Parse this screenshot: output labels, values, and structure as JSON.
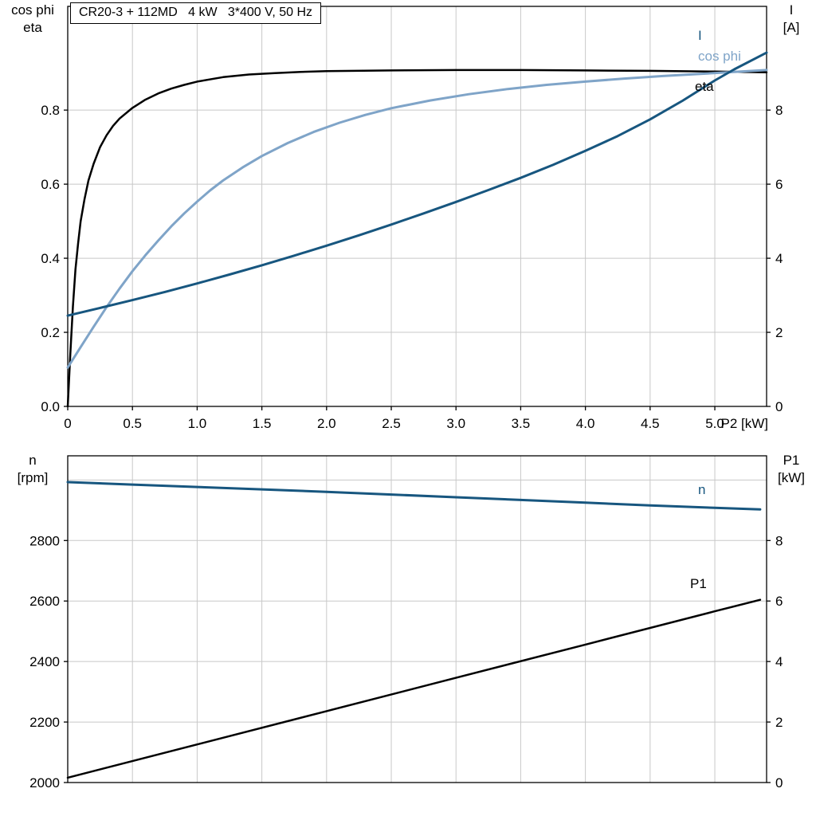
{
  "page": {
    "background": "#ffffff"
  },
  "title_box": {
    "text": "CR20-3 + 112MD   4 kW   3*400 V, 50 Hz"
  },
  "colors": {
    "black_curve": "#000000",
    "light_blue_curve": "#7fa4c8",
    "dark_blue_curve": "#17567f",
    "grid": "#c8c8c8",
    "frame": "#000000"
  },
  "chart_data": [
    {
      "id": "top",
      "type": "line",
      "title": "CR20-3 + 112MD   4 kW   3*400 V, 50 Hz",
      "x": {
        "min": 0,
        "max": 5.4,
        "label": "P2 [kW]",
        "ticks": [
          {
            "v": 0,
            "l": "0"
          },
          {
            "v": 0.5,
            "l": "0.5"
          },
          {
            "v": 1,
            "l": "1.0"
          },
          {
            "v": 1.5,
            "l": "1.5"
          },
          {
            "v": 2,
            "l": "2.0"
          },
          {
            "v": 2.5,
            "l": "2.5"
          },
          {
            "v": 3,
            "l": "3.0"
          },
          {
            "v": 3.5,
            "l": "3.5"
          },
          {
            "v": 4,
            "l": "4.0"
          },
          {
            "v": 4.5,
            "l": "4.5"
          },
          {
            "v": 5,
            "l": "5.0"
          }
        ]
      },
      "y_left": {
        "min": 0,
        "max": 1.08,
        "label1": "cos phi",
        "label2": "eta",
        "ticks": [
          {
            "v": 0,
            "l": "0.0"
          },
          {
            "v": 0.2,
            "l": "0.2"
          },
          {
            "v": 0.4,
            "l": "0.4"
          },
          {
            "v": 0.6,
            "l": "0.6"
          },
          {
            "v": 0.8,
            "l": "0.8"
          }
        ]
      },
      "y_right": {
        "min": 0,
        "max": 10.8,
        "label1": "I",
        "label2": "[A]",
        "ticks": [
          {
            "v": 0,
            "l": "0"
          },
          {
            "v": 2,
            "l": "2"
          },
          {
            "v": 4,
            "l": "4"
          },
          {
            "v": 6,
            "l": "6"
          },
          {
            "v": 8,
            "l": "8"
          }
        ]
      },
      "series": [
        {
          "name": "eta",
          "axis": "left",
          "color": "#000000",
          "points": [
            [
              0,
              0
            ],
            [
              0.02,
              0.14
            ],
            [
              0.04,
              0.27
            ],
            [
              0.06,
              0.37
            ],
            [
              0.08,
              0.44
            ],
            [
              0.1,
              0.5
            ],
            [
              0.13,
              0.56
            ],
            [
              0.16,
              0.61
            ],
            [
              0.2,
              0.655
            ],
            [
              0.25,
              0.7
            ],
            [
              0.3,
              0.732
            ],
            [
              0.35,
              0.757
            ],
            [
              0.4,
              0.777
            ],
            [
              0.5,
              0.806
            ],
            [
              0.6,
              0.828
            ],
            [
              0.7,
              0.845
            ],
            [
              0.8,
              0.858
            ],
            [
              0.9,
              0.868
            ],
            [
              1.0,
              0.877
            ],
            [
              1.2,
              0.889
            ],
            [
              1.4,
              0.896
            ],
            [
              1.6,
              0.9
            ],
            [
              1.8,
              0.903
            ],
            [
              2.0,
              0.905
            ],
            [
              2.5,
              0.907
            ],
            [
              3.0,
              0.908
            ],
            [
              3.5,
              0.908
            ],
            [
              4.0,
              0.907
            ],
            [
              4.5,
              0.906
            ],
            [
              5.0,
              0.904
            ],
            [
              5.4,
              0.902
            ]
          ]
        },
        {
          "name": "cos phi",
          "axis": "left",
          "color": "#7fa4c8",
          "points": [
            [
              0,
              0.105
            ],
            [
              0.1,
              0.16
            ],
            [
              0.2,
              0.215
            ],
            [
              0.3,
              0.268
            ],
            [
              0.4,
              0.318
            ],
            [
              0.5,
              0.365
            ],
            [
              0.6,
              0.408
            ],
            [
              0.7,
              0.448
            ],
            [
              0.8,
              0.486
            ],
            [
              0.9,
              0.521
            ],
            [
              1.0,
              0.553
            ],
            [
              1.1,
              0.583
            ],
            [
              1.2,
              0.61
            ],
            [
              1.35,
              0.645
            ],
            [
              1.5,
              0.676
            ],
            [
              1.7,
              0.711
            ],
            [
              1.9,
              0.741
            ],
            [
              2.1,
              0.766
            ],
            [
              2.3,
              0.787
            ],
            [
              2.5,
              0.805
            ],
            [
              2.8,
              0.826
            ],
            [
              3.1,
              0.843
            ],
            [
              3.4,
              0.857
            ],
            [
              3.7,
              0.868
            ],
            [
              4.0,
              0.877
            ],
            [
              4.3,
              0.885
            ],
            [
              4.6,
              0.892
            ],
            [
              4.9,
              0.898
            ],
            [
              5.15,
              0.903
            ],
            [
              5.4,
              0.908
            ]
          ]
        },
        {
          "name": "I",
          "axis": "right",
          "color": "#17567f",
          "points": [
            [
              0,
              2.45
            ],
            [
              0.25,
              2.66
            ],
            [
              0.5,
              2.87
            ],
            [
              0.75,
              3.09
            ],
            [
              1.0,
              3.32
            ],
            [
              1.25,
              3.56
            ],
            [
              1.5,
              3.81
            ],
            [
              1.75,
              4.07
            ],
            [
              2.0,
              4.34
            ],
            [
              2.25,
              4.62
            ],
            [
              2.5,
              4.91
            ],
            [
              2.75,
              5.21
            ],
            [
              3.0,
              5.52
            ],
            [
              3.25,
              5.84
            ],
            [
              3.5,
              6.17
            ],
            [
              3.75,
              6.52
            ],
            [
              4.0,
              6.9
            ],
            [
              4.25,
              7.3
            ],
            [
              4.5,
              7.75
            ],
            [
              4.75,
              8.25
            ],
            [
              5.0,
              8.8
            ],
            [
              5.15,
              9.1
            ],
            [
              5.4,
              9.55
            ]
          ]
        }
      ],
      "curve_labels": [
        {
          "text": "I",
          "color": "#17567f"
        },
        {
          "text": "cos phi",
          "color": "#7fa4c8"
        },
        {
          "text": "eta",
          "color": "#000000"
        }
      ]
    },
    {
      "id": "bottom",
      "type": "line",
      "title": "",
      "x": {
        "min": 0,
        "max": 5.4,
        "label": "",
        "ticks": [
          {
            "v": 0,
            "l": ""
          },
          {
            "v": 0.5,
            "l": ""
          },
          {
            "v": 1,
            "l": ""
          },
          {
            "v": 1.5,
            "l": ""
          },
          {
            "v": 2,
            "l": ""
          },
          {
            "v": 2.5,
            "l": ""
          },
          {
            "v": 3,
            "l": ""
          },
          {
            "v": 3.5,
            "l": ""
          },
          {
            "v": 4,
            "l": ""
          },
          {
            "v": 4.5,
            "l": ""
          },
          {
            "v": 5,
            "l": ""
          }
        ]
      },
      "y_left": {
        "min": 2000,
        "max": 3080,
        "label1": "n",
        "label2": "[rpm]",
        "ticks": [
          {
            "v": 2000,
            "l": "2000"
          },
          {
            "v": 2200,
            "l": "2200"
          },
          {
            "v": 2400,
            "l": "2400"
          },
          {
            "v": 2600,
            "l": "2600"
          },
          {
            "v": 2800,
            "l": "2800"
          },
          {
            "v": 3000,
            "l": ""
          }
        ]
      },
      "y_right": {
        "min": 0,
        "max": 10.8,
        "label1": "P1",
        "label2": "[kW]",
        "ticks": [
          {
            "v": 0,
            "l": "0"
          },
          {
            "v": 2,
            "l": "2"
          },
          {
            "v": 4,
            "l": "4"
          },
          {
            "v": 6,
            "l": "6"
          },
          {
            "v": 8,
            "l": "8"
          },
          {
            "v": 10,
            "l": ""
          }
        ]
      },
      "series": [
        {
          "name": "n",
          "axis": "left",
          "color": "#17567f",
          "points": [
            [
              0,
              2993
            ],
            [
              0.5,
              2985
            ],
            [
              1.0,
              2977
            ],
            [
              1.5,
              2969
            ],
            [
              2.0,
              2961
            ],
            [
              2.5,
              2952
            ],
            [
              3.0,
              2943
            ],
            [
              3.5,
              2934
            ],
            [
              4.0,
              2925
            ],
            [
              4.5,
              2916
            ],
            [
              5.0,
              2908
            ],
            [
              5.35,
              2903
            ]
          ]
        },
        {
          "name": "P1",
          "axis": "right",
          "color": "#000000",
          "points": [
            [
              0,
              0.16
            ],
            [
              1.0,
              1.26
            ],
            [
              2.0,
              2.36
            ],
            [
              3.0,
              3.46
            ],
            [
              4.0,
              4.56
            ],
            [
              5.0,
              5.66
            ],
            [
              5.35,
              6.04
            ]
          ]
        }
      ],
      "curve_labels": [
        {
          "text": "n",
          "color": "#17567f"
        },
        {
          "text": "P1",
          "color": "#000000"
        }
      ]
    }
  ]
}
